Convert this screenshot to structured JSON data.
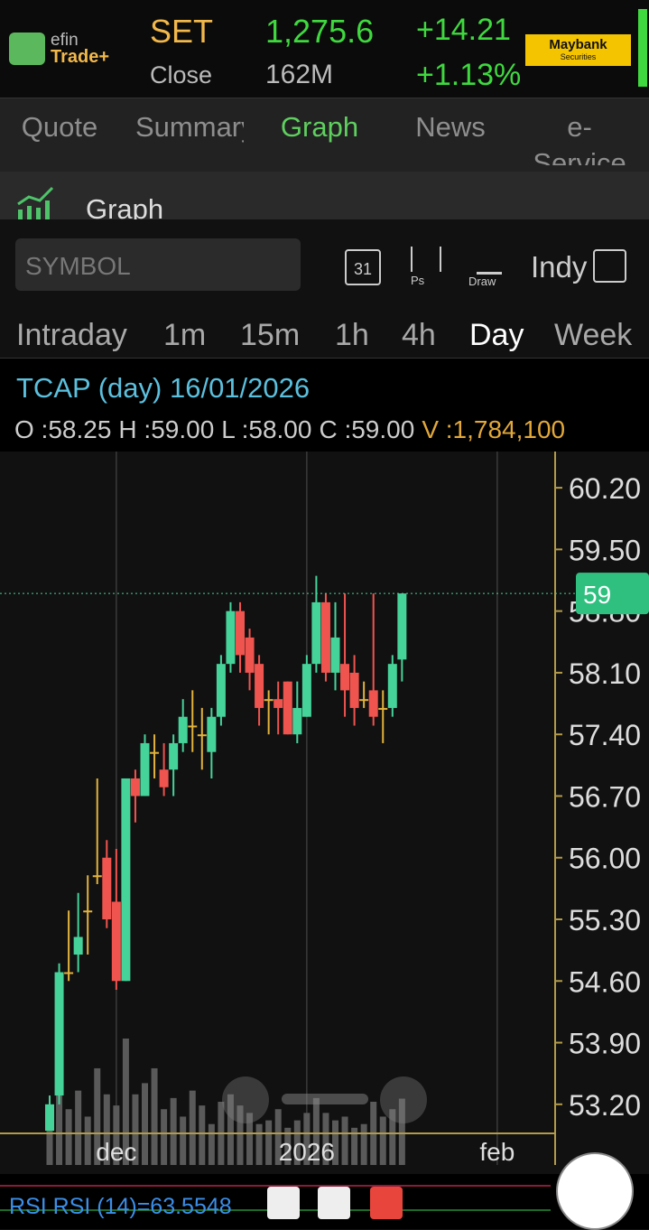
{
  "header": {
    "logo_top": "efin",
    "logo_bottom": "Trade+",
    "index_name": "SET",
    "index_value": "1,275.6",
    "change": "+14.21",
    "status": "Close",
    "volume": "162M",
    "change_pct": "+1.13%",
    "broker": "Maybank",
    "broker_sub": "Securities"
  },
  "tabs": [
    "Quote",
    "Summary",
    "Graph",
    "News",
    "e-Service"
  ],
  "selected_tab": 2,
  "section_title": "Graph",
  "toolbar": {
    "symbol_placeholder": "SYMBOL",
    "calendar": "31",
    "ps": "Ps",
    "draw": "Draw",
    "indy": "Indy"
  },
  "intervals": [
    "Intraday",
    "1m",
    "15m",
    "1h",
    "4h",
    "Day",
    "Week"
  ],
  "selected_interval": 5,
  "quote_title": "TCAP (day) 16/01/2026",
  "quote_fields": [
    {
      "key": "O :",
      "value": "58.25"
    },
    {
      "key": "H :",
      "value": "59.00"
    },
    {
      "key": "L :",
      "value": "58.00"
    },
    {
      "key": "C :",
      "value": "59.00"
    },
    {
      "key": "V :",
      "value": "1,784,100"
    }
  ],
  "rsi_label": "RSI RSI (14)=63.5548",
  "chart_data": {
    "type": "candlestick",
    "x": [
      null,
      null,
      null,
      null,
      null,
      null,
      null,
      "dec",
      null,
      null,
      null,
      null,
      null,
      null,
      null,
      null,
      null,
      null,
      null,
      null,
      null,
      null,
      null,
      null,
      null,
      null,
      null,
      "2026",
      null,
      null,
      null,
      null,
      null,
      null,
      null,
      null,
      null,
      null,
      null,
      null,
      null,
      null,
      null,
      null,
      null,
      null,
      null,
      "feb"
    ],
    "open": [
      52.9,
      53.3,
      54.7,
      54.9,
      55.4,
      55.8,
      56.0,
      55.5,
      54.6,
      56.9,
      56.7,
      57.2,
      57.0,
      57.0,
      57.3,
      57.5,
      57.4,
      57.2,
      57.6,
      58.2,
      58.8,
      58.5,
      58.2,
      57.8,
      57.8,
      58.0,
      57.4,
      57.6,
      58.2,
      58.9,
      58.1,
      58.2,
      58.1,
      57.8,
      57.9,
      57.7,
      57.7,
      58.25,
      null,
      null,
      null,
      null,
      null,
      null,
      null,
      null,
      null,
      null
    ],
    "high": [
      53.3,
      54.8,
      55.4,
      55.6,
      55.8,
      56.9,
      56.2,
      56.1,
      56.9,
      57.0,
      57.4,
      57.4,
      57.3,
      57.4,
      57.8,
      57.9,
      57.7,
      57.7,
      58.3,
      58.9,
      58.9,
      58.6,
      58.3,
      57.9,
      58.0,
      58.0,
      58.0,
      58.3,
      59.2,
      59.0,
      58.9,
      59.0,
      58.3,
      58.0,
      59.0,
      57.9,
      58.3,
      59.0,
      null,
      null,
      null,
      null,
      null,
      null,
      null,
      null,
      null,
      null
    ],
    "low": [
      52.9,
      53.2,
      54.6,
      54.7,
      54.9,
      55.7,
      55.2,
      54.5,
      54.6,
      56.4,
      56.7,
      56.9,
      56.7,
      56.7,
      57.2,
      57.2,
      57.0,
      56.9,
      57.5,
      58.1,
      58.1,
      57.9,
      57.5,
      57.4,
      57.4,
      57.4,
      57.3,
      57.6,
      58.1,
      58.0,
      57.9,
      57.6,
      57.5,
      57.7,
      57.5,
      57.3,
      57.6,
      58.0,
      null,
      null,
      null,
      null,
      null,
      null,
      null,
      null,
      null,
      null
    ],
    "close": [
      53.2,
      54.7,
      54.7,
      55.1,
      55.4,
      55.8,
      55.3,
      54.6,
      56.9,
      56.7,
      57.3,
      57.2,
      56.8,
      57.3,
      57.6,
      57.5,
      57.4,
      57.6,
      58.2,
      58.8,
      58.3,
      58.1,
      57.7,
      57.8,
      57.7,
      57.4,
      57.7,
      58.2,
      58.9,
      58.1,
      58.5,
      57.9,
      57.7,
      57.8,
      57.6,
      57.7,
      58.2,
      59.0,
      null,
      null,
      null,
      null,
      null,
      null,
      null,
      null,
      null,
      null
    ],
    "volume": [
      1200000,
      2400000,
      1500000,
      2000000,
      1300000,
      2600000,
      1900000,
      1600000,
      3400000,
      1900000,
      2200000,
      2600000,
      1500000,
      1800000,
      1300000,
      2000000,
      1600000,
      1100000,
      1700000,
      1900000,
      1600000,
      1400000,
      1100000,
      1200000,
      1500000,
      1000000,
      1200000,
      1400000,
      1800000,
      1400000,
      1200000,
      1300000,
      1000000,
      1100000,
      1700000,
      1300000,
      1500000,
      1784100,
      null,
      null,
      null,
      null,
      null,
      null,
      null,
      null,
      null,
      null
    ],
    "ylim": [
      52.87,
      60.56
    ],
    "yticks": [
      {
        "value": 53.2,
        "label": "53.20"
      },
      {
        "value": 53.9,
        "label": "53.90"
      },
      {
        "value": 54.6,
        "label": "54.60"
      },
      {
        "value": 55.3,
        "label": "55.30"
      },
      {
        "value": 56.0,
        "label": "56.00"
      },
      {
        "value": 56.7,
        "label": "56.70"
      },
      {
        "value": 57.4,
        "label": "57.40"
      },
      {
        "value": 58.1,
        "label": "58.10"
      },
      {
        "value": 58.8,
        "label": "58.80"
      },
      {
        "value": 59.5,
        "label": "59.50"
      },
      {
        "value": 60.2,
        "label": "60.20"
      }
    ],
    "last_price": 59,
    "colors": {
      "up": "#46d39a",
      "down": "#f0544f",
      "flat": "#e2b33c",
      "volume": "#5a5a5a"
    }
  }
}
